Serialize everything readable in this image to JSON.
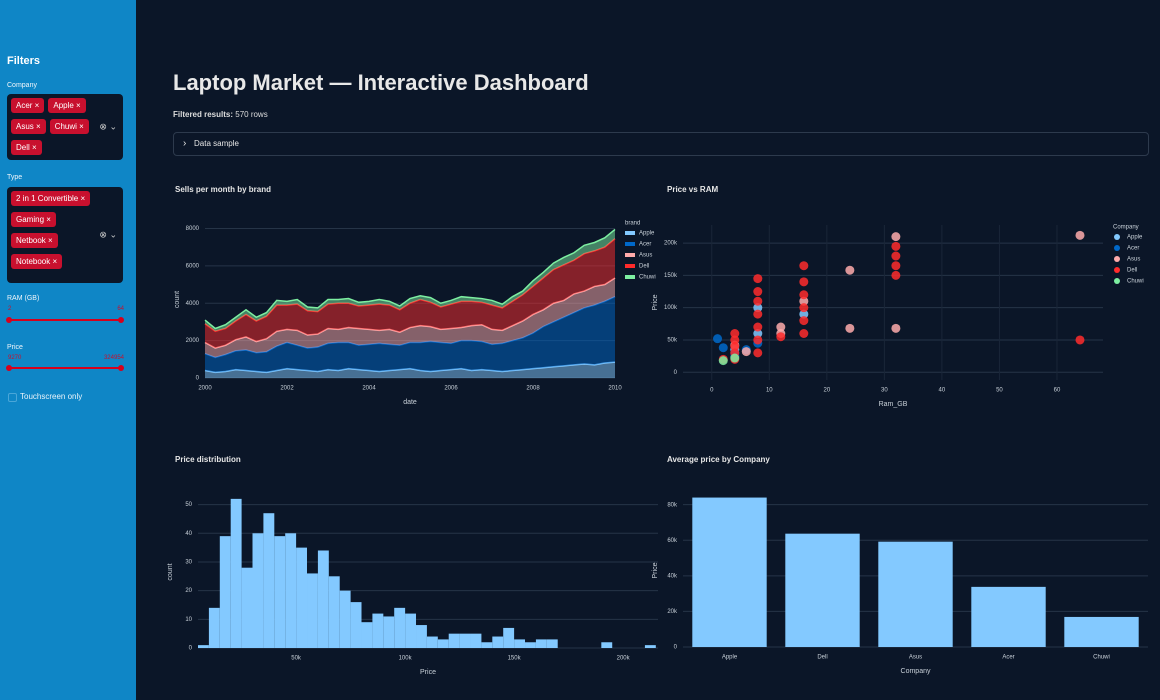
{
  "sidebar": {
    "title": "Filters",
    "company": {
      "label": "Company",
      "chips": [
        "Acer",
        "Apple",
        "Asus",
        "Chuwi",
        "Dell"
      ]
    },
    "type": {
      "label": "Type",
      "chips": [
        "2 in 1 Convertible",
        "Gaming",
        "Netbook",
        "Notebook"
      ]
    },
    "ram": {
      "label": "RAM (GB)",
      "min": 2,
      "max": 64
    },
    "price": {
      "label": "Price",
      "min": 9270,
      "max": 324954
    },
    "touchscreen": "Touchscreen only"
  },
  "header": {
    "title": "Laptop Market — Interactive Dashboard",
    "results_label": "Filtered results:",
    "results": "570 rows",
    "expander": "Data sample"
  },
  "chart_data": [
    {
      "type": "area",
      "title": "Sells per month by brand",
      "xlabel": "date",
      "ylabel": "count",
      "legend_title": "brand",
      "grid": true,
      "x": [
        2000,
        2000.25,
        2000.5,
        2000.75,
        2001,
        2001.25,
        2001.5,
        2001.75,
        2002,
        2002.25,
        2002.5,
        2002.75,
        2003,
        2003.25,
        2003.5,
        2003.75,
        2004,
        2004.25,
        2004.5,
        2004.75,
        2005,
        2005.25,
        2005.5,
        2005.75,
        2006,
        2006.25,
        2006.5,
        2006.75,
        2007,
        2007.25,
        2007.5,
        2007.75,
        2008,
        2008.25,
        2008.5,
        2008.75,
        2009,
        2009.25,
        2009.5,
        2009.75,
        2010
      ],
      "xlim": [
        2000,
        2010
      ],
      "xticks": [
        2000,
        2002,
        2004,
        2006,
        2008,
        2010
      ],
      "ylim": [
        0,
        8400
      ],
      "yticks": [
        0,
        2000,
        4000,
        6000,
        8000
      ],
      "series": [
        {
          "name": "Apple",
          "color": "#83c9ff",
          "values": [
            400,
            300,
            350,
            450,
            400,
            350,
            300,
            400,
            500,
            450,
            400,
            350,
            450,
            400,
            500,
            450,
            400,
            350,
            400,
            450,
            500,
            400,
            350,
            400,
            450,
            500,
            400,
            450,
            400,
            350,
            400,
            450,
            500,
            550,
            600,
            650,
            700,
            750,
            700,
            800,
            850
          ]
        },
        {
          "name": "Acer",
          "color": "#0068c9",
          "values": [
            900,
            800,
            900,
            1000,
            1100,
            1000,
            1100,
            1300,
            1400,
            1300,
            1200,
            1300,
            1400,
            1500,
            1400,
            1300,
            1400,
            1500,
            1400,
            1300,
            1400,
            1500,
            1600,
            1500,
            1400,
            1500,
            1600,
            1500,
            1400,
            1500,
            1600,
            1700,
            1900,
            2200,
            2400,
            2600,
            2800,
            3000,
            3200,
            3300,
            3500
          ]
        },
        {
          "name": "Asus",
          "color": "#ffabab",
          "values": [
            600,
            500,
            500,
            600,
            700,
            600,
            700,
            800,
            700,
            800,
            700,
            700,
            800,
            700,
            800,
            900,
            800,
            700,
            800,
            700,
            800,
            900,
            800,
            700,
            800,
            700,
            800,
            900,
            800,
            700,
            800,
            900,
            1000,
            900,
            1000,
            900,
            1000,
            900,
            1000,
            900,
            1000
          ]
        },
        {
          "name": "Dell",
          "color": "#ff2b2b",
          "values": [
            1000,
            900,
            900,
            1000,
            1200,
            1100,
            1200,
            1400,
            1300,
            1400,
            1300,
            1200,
            1300,
            1400,
            1300,
            1200,
            1300,
            1400,
            1300,
            1200,
            1300,
            1400,
            1300,
            1200,
            1300,
            1400,
            1300,
            1200,
            1300,
            1200,
            1300,
            1400,
            1500,
            1700,
            1800,
            1900,
            1800,
            2000,
            1900,
            2000,
            2100
          ]
        },
        {
          "name": "Chuwi",
          "color": "#7defa1",
          "values": [
            200,
            150,
            200,
            200,
            250,
            200,
            200,
            250,
            200,
            250,
            200,
            200,
            250,
            200,
            250,
            200,
            200,
            250,
            200,
            200,
            250,
            200,
            250,
            200,
            200,
            250,
            200,
            200,
            250,
            200,
            250,
            200,
            300,
            300,
            350,
            400,
            400,
            450,
            450,
            500,
            500
          ]
        }
      ]
    },
    {
      "type": "scatter",
      "title": "Price vs RAM",
      "xlabel": "Ram_GB",
      "ylabel": "Price",
      "legend_title": "Company",
      "grid": true,
      "xlim": [
        -5,
        68
      ],
      "xticks": [
        0,
        10,
        20,
        30,
        40,
        50,
        60
      ],
      "ylim": [
        -12000,
        228000
      ],
      "yticks": [
        0,
        {
          "value": 50000,
          "label": "50k"
        },
        {
          "value": 100000,
          "label": "100k"
        },
        {
          "value": 150000,
          "label": "150k"
        },
        {
          "value": 200000,
          "label": "200k"
        }
      ],
      "series": [
        {
          "name": "Apple",
          "color": "#83c9ff",
          "x": [
            8,
            16,
            8,
            4
          ],
          "values": [
            60000,
            90000,
            100000,
            35000
          ]
        },
        {
          "name": "Acer",
          "color": "#0068c9",
          "x": [
            1,
            2,
            4,
            4,
            6,
            8
          ],
          "values": [
            52000,
            38000,
            25000,
            30000,
            35000,
            45000
          ]
        },
        {
          "name": "Asus",
          "color": "#ffabab",
          "x": [
            24,
            24,
            32,
            32,
            64,
            12,
            12,
            6,
            16,
            4
          ],
          "values": [
            158000,
            68000,
            68000,
            210000,
            212000,
            60000,
            70000,
            32000,
            110000,
            42000
          ]
        },
        {
          "name": "Dell",
          "color": "#ff2b2b",
          "x": [
            2,
            4,
            4,
            4,
            4,
            4,
            8,
            8,
            8,
            8,
            8,
            8,
            8,
            12,
            16,
            16,
            16,
            16,
            16,
            16,
            32,
            32,
            32,
            32,
            64
          ],
          "values": [
            20000,
            20000,
            30000,
            40000,
            50000,
            60000,
            30000,
            50000,
            70000,
            90000,
            110000,
            125000,
            145000,
            55000,
            60000,
            80000,
            100000,
            120000,
            140000,
            165000,
            150000,
            165000,
            180000,
            195000,
            50000
          ]
        },
        {
          "name": "Chuwi",
          "color": "#7defa1",
          "x": [
            2,
            4
          ],
          "values": [
            18000,
            22000
          ]
        }
      ]
    },
    {
      "type": "histogram",
      "title": "Price distribution",
      "xlabel": "Price",
      "ylabel": "count",
      "color": "#83c9ff",
      "grid": true,
      "bins": [
        5000,
        10000,
        15000,
        20000,
        25000,
        30000,
        35000,
        40000,
        45000,
        50000,
        55000,
        60000,
        65000,
        70000,
        75000,
        80000,
        85000,
        90000,
        95000,
        100000,
        105000,
        110000,
        115000,
        120000,
        125000,
        130000,
        135000,
        140000,
        145000,
        150000,
        155000,
        160000,
        165000,
        170000,
        175000,
        180000,
        185000,
        190000,
        195000,
        200000,
        205000,
        210000,
        215000
      ],
      "counts": [
        1,
        14,
        39,
        52,
        28,
        40,
        47,
        39,
        40,
        35,
        26,
        34,
        25,
        20,
        16,
        9,
        12,
        11,
        14,
        12,
        8,
        4,
        3,
        5,
        5,
        5,
        2,
        4,
        7,
        3,
        2,
        3,
        3,
        0,
        0,
        0,
        0,
        2,
        0,
        0,
        0,
        1
      ],
      "xlim": [
        5000,
        216000
      ],
      "xticks": [
        {
          "value": 50000,
          "label": "50k"
        },
        {
          "value": 100000,
          "label": "100k"
        },
        {
          "value": 150000,
          "label": "150k"
        },
        {
          "value": 200000,
          "label": "200k"
        }
      ],
      "ylim": [
        0,
        53
      ],
      "yticks": [
        0,
        10,
        20,
        30,
        40,
        50
      ]
    },
    {
      "type": "bar",
      "title": "Average price by Company",
      "xlabel": "Company",
      "ylabel": "Price",
      "color": "#83c9ff",
      "grid": true,
      "categories": [
        "Apple",
        "Dell",
        "Asus",
        "Acer",
        "Chuwi"
      ],
      "values": [
        84000,
        63700,
        59200,
        33800,
        16900
      ],
      "ylim": [
        0,
        86000
      ],
      "yticks": [
        0,
        {
          "value": 20000,
          "label": "20k"
        },
        {
          "value": 40000,
          "label": "40k"
        },
        {
          "value": 60000,
          "label": "60k"
        },
        {
          "value": 80000,
          "label": "80k"
        }
      ]
    }
  ]
}
